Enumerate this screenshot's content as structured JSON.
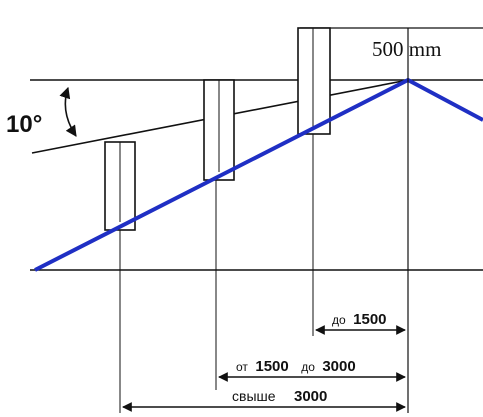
{
  "diagram": {
    "angle_label": "10°",
    "ridge_height_label": "500 mm",
    "dimensions": [
      {
        "prefix": "до",
        "value": "1500"
      },
      {
        "prefix": "от",
        "value": "1500",
        "middle": "до",
        "value2": "3000"
      },
      {
        "prefix": "свыше",
        "value": "3000"
      }
    ],
    "colors": {
      "roof_line": "#1f2fc4",
      "lines": "#111111",
      "background": "#ffffff"
    }
  }
}
